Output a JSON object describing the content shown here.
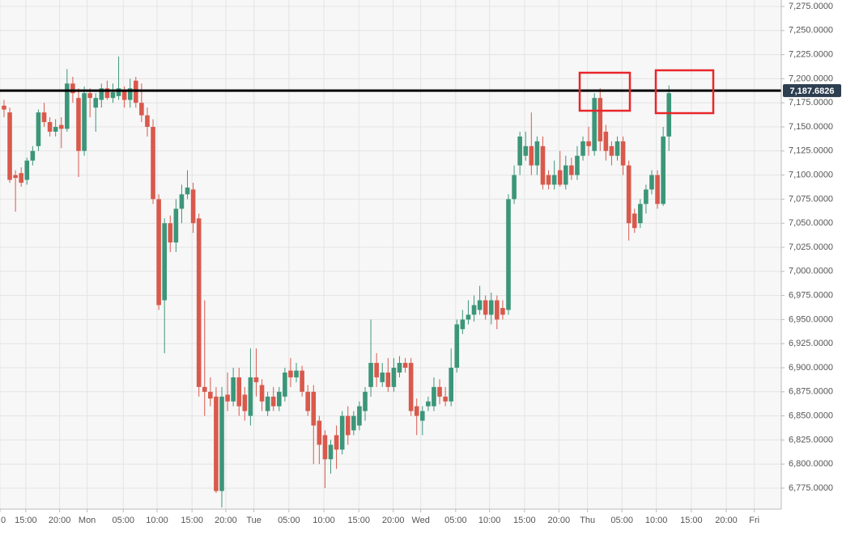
{
  "chart_data": {
    "type": "candlestick",
    "ohlc": [
      [
        7172,
        7178,
        7160,
        7168
      ],
      [
        7165,
        7170,
        7092,
        7095
      ],
      [
        7100,
        7105,
        7062,
        7097
      ],
      [
        7102,
        7108,
        7088,
        7092
      ],
      [
        7095,
        7118,
        7090,
        7115
      ],
      [
        7115,
        7130,
        7110,
        7125
      ],
      [
        7130,
        7168,
        7125,
        7165
      ],
      [
        7165,
        7175,
        7150,
        7155
      ],
      [
        7155,
        7160,
        7140,
        7145
      ],
      [
        7145,
        7158,
        7140,
        7150
      ],
      [
        7152,
        7160,
        7128,
        7148
      ],
      [
        7148,
        7210,
        7145,
        7195
      ],
      [
        7195,
        7202,
        7175,
        7185
      ],
      [
        7180,
        7190,
        7098,
        7125
      ],
      [
        7125,
        7192,
        7120,
        7185
      ],
      [
        7185,
        7190,
        7160,
        7180
      ],
      [
        7170,
        7185,
        7145,
        7180
      ],
      [
        7178,
        7195,
        7170,
        7190
      ],
      [
        7190,
        7198,
        7178,
        7180
      ],
      [
        7180,
        7195,
        7175,
        7186
      ],
      [
        7182,
        7223,
        7178,
        7190
      ],
      [
        7188,
        7192,
        7170,
        7178
      ],
      [
        7178,
        7200,
        7170,
        7190
      ],
      [
        7198,
        7202,
        7170,
        7175
      ],
      [
        7175,
        7195,
        7155,
        7162
      ],
      [
        7162,
        7170,
        7140,
        7150
      ],
      [
        7150,
        7158,
        7070,
        7075
      ],
      [
        7075,
        7080,
        6960,
        6965
      ],
      [
        6970,
        7055,
        6915,
        7050
      ],
      [
        7050,
        7058,
        7020,
        7030
      ],
      [
        7030,
        7075,
        7020,
        7065
      ],
      [
        7065,
        7090,
        7050,
        7080
      ],
      [
        7080,
        7105,
        7075,
        7087
      ],
      [
        7085,
        7092,
        7040,
        7050
      ],
      [
        7055,
        7060,
        6870,
        6880
      ],
      [
        6880,
        6970,
        6850,
        6875
      ],
      [
        6875,
        6890,
        6860,
        6868
      ],
      [
        6870,
        6880,
        6770,
        6772
      ],
      [
        6772,
        6880,
        6755,
        6870
      ],
      [
        6872,
        6895,
        6855,
        6865
      ],
      [
        6865,
        6900,
        6860,
        6890
      ],
      [
        6890,
        6900,
        6850,
        6860
      ],
      [
        6872,
        6880,
        6845,
        6855
      ],
      [
        6850,
        6920,
        6840,
        6890
      ],
      [
        6890,
        6920,
        6870,
        6885
      ],
      [
        6882,
        6888,
        6855,
        6865
      ],
      [
        6855,
        6875,
        6850,
        6870
      ],
      [
        6870,
        6880,
        6855,
        6860
      ],
      [
        6860,
        6880,
        6855,
        6875
      ],
      [
        6870,
        6900,
        6865,
        6895
      ],
      [
        6897,
        6910,
        6880,
        6890
      ],
      [
        6890,
        6905,
        6885,
        6897
      ],
      [
        6897,
        6902,
        6870,
        6875
      ],
      [
        6875,
        6882,
        6850,
        6855
      ],
      [
        6875,
        6882,
        6800,
        6840
      ],
      [
        6845,
        6850,
        6800,
        6820
      ],
      [
        6830,
        6835,
        6775,
        6805
      ],
      [
        6805,
        6825,
        6790,
        6820
      ],
      [
        6830,
        6840,
        6795,
        6815
      ],
      [
        6815,
        6855,
        6810,
        6850
      ],
      [
        6850,
        6860,
        6820,
        6830
      ],
      [
        6835,
        6855,
        6830,
        6850
      ],
      [
        6840,
        6865,
        6835,
        6860
      ],
      [
        6855,
        6880,
        6845,
        6875
      ],
      [
        6880,
        6950,
        6870,
        6905
      ],
      [
        6905,
        6915,
        6880,
        6890
      ],
      [
        6885,
        6905,
        6880,
        6895
      ],
      [
        6895,
        6910,
        6875,
        6880
      ],
      [
        6880,
        6910,
        6875,
        6900
      ],
      [
        6895,
        6912,
        6890,
        6905
      ],
      [
        6905,
        6910,
        6895,
        6900
      ],
      [
        6905,
        6910,
        6850,
        6855
      ],
      [
        6860,
        6868,
        6830,
        6850
      ],
      [
        6845,
        6860,
        6830,
        6855
      ],
      [
        6860,
        6870,
        6855,
        6865
      ],
      [
        6860,
        6890,
        6855,
        6880
      ],
      [
        6880,
        6888,
        6862,
        6870
      ],
      [
        6870,
        6880,
        6860,
        6865
      ],
      [
        6865,
        6920,
        6860,
        6900
      ],
      [
        6900,
        6950,
        6895,
        6945
      ],
      [
        6940,
        6960,
        6935,
        6950
      ],
      [
        6950,
        6970,
        6945,
        6955
      ],
      [
        6955,
        6975,
        6948,
        6965
      ],
      [
        6960,
        6985,
        6955,
        6970
      ],
      [
        6970,
        6975,
        6950,
        6955
      ],
      [
        6955,
        6978,
        6945,
        6970
      ],
      [
        6970,
        6975,
        6940,
        6950
      ],
      [
        6962,
        6970,
        6950,
        6955
      ],
      [
        6960,
        7080,
        6955,
        7075
      ],
      [
        7075,
        7110,
        7070,
        7100
      ],
      [
        7110,
        7145,
        7100,
        7140
      ],
      [
        7120,
        7145,
        7115,
        7130
      ],
      [
        7130,
        7165,
        7100,
        7110
      ],
      [
        7110,
        7140,
        7100,
        7135
      ],
      [
        7130,
        7140,
        7085,
        7090
      ],
      [
        7100,
        7105,
        7085,
        7090
      ],
      [
        7090,
        7115,
        7085,
        7100
      ],
      [
        7105,
        7125,
        7088,
        7090
      ],
      [
        7090,
        7120,
        7085,
        7110
      ],
      [
        7110,
        7118,
        7095,
        7100
      ],
      [
        7100,
        7130,
        7095,
        7120
      ],
      [
        7120,
        7140,
        7115,
        7135
      ],
      [
        7135,
        7150,
        7120,
        7130
      ],
      [
        7125,
        7185,
        7120,
        7180
      ],
      [
        7180,
        7190,
        7125,
        7135
      ],
      [
        7145,
        7152,
        7115,
        7125
      ],
      [
        7130,
        7135,
        7110,
        7120
      ],
      [
        7120,
        7140,
        7115,
        7135
      ],
      [
        7135,
        7140,
        7100,
        7110
      ],
      [
        7110,
        7115,
        7032,
        7050
      ],
      [
        7060,
        7065,
        7040,
        7045
      ],
      [
        7050,
        7075,
        7045,
        7070
      ],
      [
        7070,
        7090,
        7060,
        7085
      ],
      [
        7085,
        7105,
        7080,
        7100
      ],
      [
        7100,
        7105,
        7065,
        7070
      ],
      [
        7070,
        7150,
        7068,
        7140
      ],
      [
        7140,
        7193,
        7125,
        7185
      ]
    ],
    "up_color": "#3c9679",
    "down_color": "#d9594c",
    "xlim": [
      -0.7,
      135.6
    ],
    "xticks": [
      {
        "value": -0.7,
        "label": "0"
      },
      {
        "value": 3.8,
        "label": "15:00"
      },
      {
        "value": 9.7,
        "label": "20:00"
      },
      {
        "value": 14.5,
        "label": "Mon"
      },
      {
        "value": 20.8,
        "label": "05:00"
      },
      {
        "value": 26.7,
        "label": "10:00"
      },
      {
        "value": 32.8,
        "label": "15:00"
      },
      {
        "value": 38.7,
        "label": "20:00"
      },
      {
        "value": 43.6,
        "label": "Tue"
      },
      {
        "value": 49.7,
        "label": "05:00"
      },
      {
        "value": 55.8,
        "label": "10:00"
      },
      {
        "value": 61.9,
        "label": "15:00"
      },
      {
        "value": 67.9,
        "label": "20:00"
      },
      {
        "value": 72.7,
        "label": "Wed"
      },
      {
        "value": 78.8,
        "label": "05:00"
      },
      {
        "value": 84.7,
        "label": "10:00"
      },
      {
        "value": 90.8,
        "label": "15:00"
      },
      {
        "value": 96.8,
        "label": "20:00"
      },
      {
        "value": 101.8,
        "label": "Thu"
      },
      {
        "value": 107.8,
        "label": "05:00"
      },
      {
        "value": 113.8,
        "label": "10:00"
      },
      {
        "value": 119.9,
        "label": "15:00"
      },
      {
        "value": 126,
        "label": "20:00"
      },
      {
        "value": 130.9,
        "label": "Fri"
      }
    ],
    "ylim": [
      6753.2,
      7281.7
    ],
    "yticks": [
      {
        "value": 6775,
        "label": "6,775.0000"
      },
      {
        "value": 6800,
        "label": "6,800.0000"
      },
      {
        "value": 6825,
        "label": "6,825.0000"
      },
      {
        "value": 6850,
        "label": "6,850.0000"
      },
      {
        "value": 6875,
        "label": "6,875.0000"
      },
      {
        "value": 6900,
        "label": "6,900.0000"
      },
      {
        "value": 6925,
        "label": "6,925.0000"
      },
      {
        "value": 6950,
        "label": "6,950.0000"
      },
      {
        "value": 6975,
        "label": "6,975.0000"
      },
      {
        "value": 7000,
        "label": "7,000.0000"
      },
      {
        "value": 7025,
        "label": "7,025.0000"
      },
      {
        "value": 7050,
        "label": "7,050.0000"
      },
      {
        "value": 7075,
        "label": "7,075.0000"
      },
      {
        "value": 7100,
        "label": "7,100.0000"
      },
      {
        "value": 7125,
        "label": "7,125.0000"
      },
      {
        "value": 7150,
        "label": "7,150.0000"
      },
      {
        "value": 7175,
        "label": "7,175.0000"
      },
      {
        "value": 7200,
        "label": "7,200.0000"
      },
      {
        "value": 7225,
        "label": "7,225.0000"
      },
      {
        "value": 7250,
        "label": "7,250.0000"
      },
      {
        "value": 7275,
        "label": "7,275.0000"
      }
    ],
    "grid": true,
    "level": {
      "value": 7187.6826,
      "label": "7,187.6826",
      "color": "#000000"
    }
  }
}
